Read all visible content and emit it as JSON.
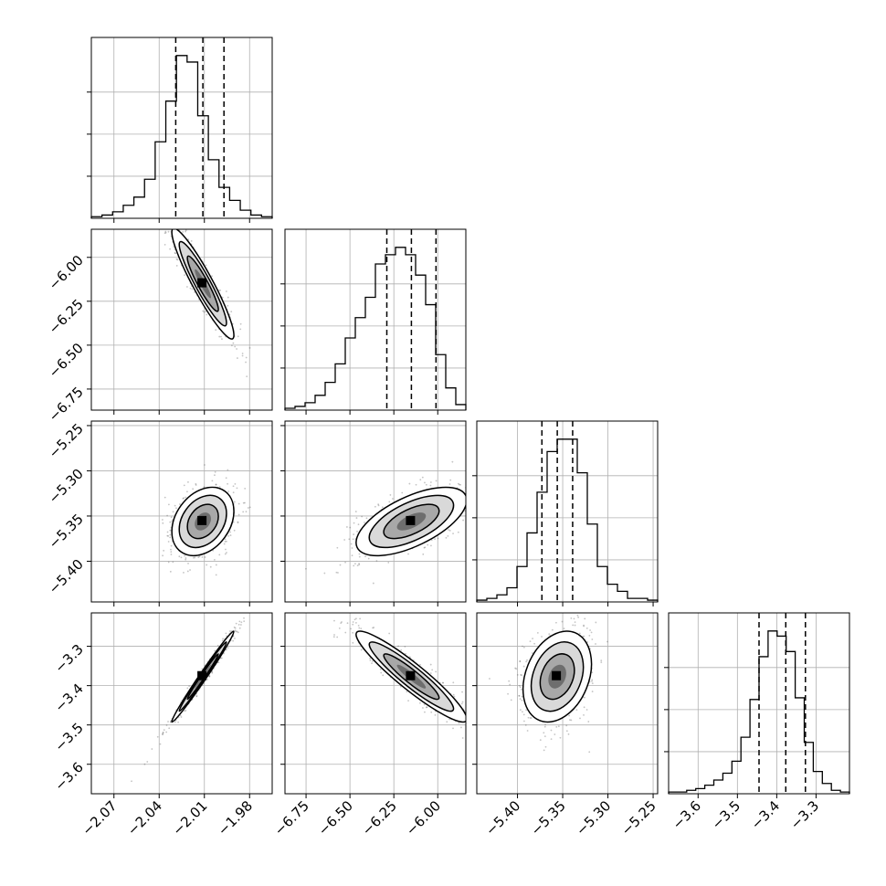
{
  "chart_data": {
    "type": "corner",
    "grid": true,
    "parameters": [
      {
        "range": [
          -2.085,
          -1.965
        ],
        "ticks": [
          -2.07,
          -2.04,
          -2.01,
          -1.98
        ],
        "tick_labels": [
          "−2.07",
          "−2.04",
          "−2.01",
          "−1.98"
        ],
        "quantiles": [
          -2.029,
          -2.011,
          -1.997
        ],
        "median": -2.011,
        "sigma": 0.0098,
        "hist": [
          1,
          2,
          4,
          8,
          13,
          24,
          47,
          72,
          100,
          96,
          63,
          36,
          19,
          11,
          5,
          2,
          1
        ]
      },
      {
        "range": [
          -6.87,
          -5.84
        ],
        "ticks": [
          -6.75,
          -6.5,
          -6.25,
          -6.0
        ],
        "tick_labels": [
          "−6.75",
          "−6.50",
          "−6.25",
          "−6.00"
        ],
        "quantiles": [
          -6.29,
          -6.15,
          -6.01
        ],
        "median": -6.15,
        "sigma": 0.15,
        "hist": [
          1,
          2,
          4,
          8,
          15,
          25,
          39,
          50,
          61,
          79,
          84,
          88,
          84,
          73,
          57,
          30,
          12,
          3
        ]
      },
      {
        "range": [
          -5.445,
          -5.245
        ],
        "ticks": [
          -5.4,
          -5.35,
          -5.3,
          -5.25
        ],
        "tick_labels": [
          "−5.40",
          "−5.35",
          "−5.30",
          "−5.25"
        ],
        "quantiles": [
          -5.373,
          -5.356,
          -5.339
        ],
        "median": -5.356,
        "sigma": 0.018,
        "hist": [
          1,
          2,
          4,
          8,
          20,
          39,
          62,
          85,
          92,
          92,
          73,
          44,
          20,
          10,
          6,
          2,
          2,
          1
        ]
      },
      {
        "range": [
          -3.675,
          -3.215
        ],
        "ticks": [
          -3.6,
          -3.5,
          -3.4,
          -3.3
        ],
        "tick_labels": [
          "−3.6",
          "−3.5",
          "−3.4",
          "−3.3"
        ],
        "quantiles": [
          -3.445,
          -3.377,
          -3.327
        ],
        "median": -3.377,
        "sigma": 0.055,
        "hist": [
          1,
          1,
          2,
          3,
          5,
          8,
          12,
          19,
          33,
          55,
          80,
          95,
          92,
          83,
          56,
          30,
          13,
          6,
          2,
          1
        ]
      }
    ],
    "pairs": [
      {
        "row": 1,
        "col": 0,
        "correlation": -0.93
      },
      {
        "row": 2,
        "col": 0,
        "correlation": 0.3
      },
      {
        "row": 2,
        "col": 1,
        "correlation": 0.62
      },
      {
        "row": 3,
        "col": 0,
        "correlation": 0.99
      },
      {
        "row": 3,
        "col": 1,
        "correlation": -0.93
      },
      {
        "row": 3,
        "col": 2,
        "correlation": 0.28
      }
    ],
    "colors": {
      "line": "#000000",
      "grid": "#b0b0b0",
      "density_max": "#000000",
      "points": "#555555"
    }
  }
}
